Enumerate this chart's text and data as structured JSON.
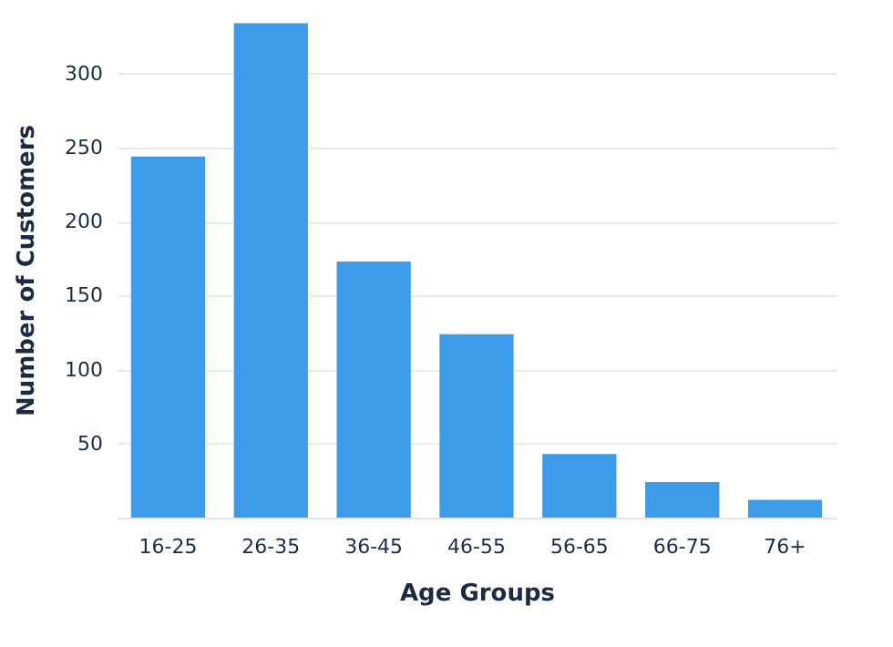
{
  "chart_data": {
    "type": "bar",
    "xlabel": "Age Groups",
    "ylabel": "Number of Customers",
    "categories": [
      "16-25",
      "26-35",
      "36-45",
      "46-55",
      "56-65",
      "66-75",
      "76+"
    ],
    "values": [
      244,
      334,
      173,
      124,
      43,
      24,
      12
    ],
    "color": "#3d9be9",
    "ylim": [
      0,
      335
    ],
    "yticks": [
      50,
      100,
      150,
      200,
      250,
      300
    ],
    "grid": "y"
  }
}
